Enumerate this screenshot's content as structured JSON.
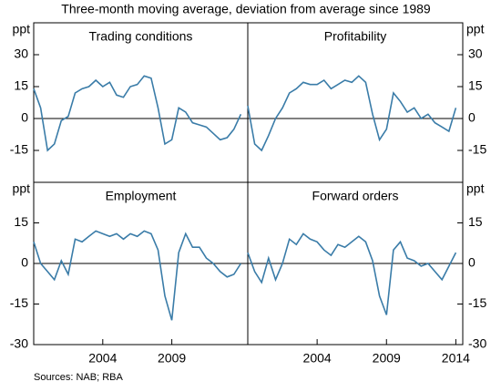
{
  "subtitle": "Three-month moving average, deviation from average since 1989",
  "sources": "Sources:  NAB; RBA",
  "chart_data": [
    {
      "type": "line",
      "title": "Trading conditions",
      "y_label": "ppt",
      "color": "#3a7ca8",
      "x": [
        1999,
        1999.5,
        2000,
        2000.5,
        2001,
        2001.5,
        2002,
        2002.5,
        2003,
        2003.5,
        2004,
        2004.5,
        2005,
        2005.5,
        2006,
        2006.5,
        2007,
        2007.5,
        2008,
        2008.5,
        2009,
        2009.5,
        2010,
        2010.5,
        2011,
        2011.5,
        2012,
        2012.5,
        2013,
        2013.5,
        2014
      ],
      "values": [
        14,
        5,
        -15,
        -12,
        -1,
        1,
        12,
        14,
        15,
        18,
        15,
        17,
        11,
        10,
        15,
        16,
        20,
        19,
        5,
        -12,
        -10,
        5,
        3,
        -2,
        -3,
        -4,
        -7,
        -10,
        -9,
        -5,
        2
      ],
      "xlim": [
        1999,
        2014.5
      ],
      "xticks": [],
      "ylim": [
        -30,
        45
      ],
      "yticks": [
        -15,
        0,
        15,
        30
      ]
    },
    {
      "type": "line",
      "title": "Profitability",
      "y_label": "ppt",
      "color": "#3a7ca8",
      "x": [
        1999,
        1999.5,
        2000,
        2000.5,
        2001,
        2001.5,
        2002,
        2002.5,
        2003,
        2003.5,
        2004,
        2004.5,
        2005,
        2005.5,
        2006,
        2006.5,
        2007,
        2007.5,
        2008,
        2008.5,
        2009,
        2009.5,
        2010,
        2010.5,
        2011,
        2011.5,
        2012,
        2012.5,
        2013,
        2013.5,
        2014
      ],
      "values": [
        6,
        -12,
        -15,
        -8,
        0,
        5,
        12,
        14,
        17,
        16,
        16,
        18,
        14,
        16,
        18,
        17,
        20,
        17,
        2,
        -10,
        -5,
        12,
        8,
        3,
        5,
        0,
        2,
        -2,
        -4,
        -6,
        5
      ],
      "xlim": [
        1999,
        2014.5
      ],
      "xticks": [],
      "ylim": [
        -30,
        45
      ],
      "yticks": [
        -15,
        0,
        15,
        30
      ]
    },
    {
      "type": "line",
      "title": "Employment",
      "y_label": "ppt",
      "color": "#3a7ca8",
      "x": [
        1999,
        1999.5,
        2000,
        2000.5,
        2001,
        2001.5,
        2002,
        2002.5,
        2003,
        2003.5,
        2004,
        2004.5,
        2005,
        2005.5,
        2006,
        2006.5,
        2007,
        2007.5,
        2008,
        2008.5,
        2009,
        2009.5,
        2010,
        2010.5,
        2011,
        2011.5,
        2012,
        2012.5,
        2013,
        2013.5,
        2014
      ],
      "values": [
        8,
        0,
        -3,
        -6,
        1,
        -4,
        9,
        8,
        10,
        12,
        11,
        10,
        11,
        9,
        11,
        10,
        12,
        11,
        5,
        -12,
        -21,
        4,
        11,
        6,
        6,
        2,
        0,
        -3,
        -5,
        -4,
        0
      ],
      "xlim": [
        1999,
        2014.5
      ],
      "xticks": [
        2004,
        2009
      ],
      "ylim": [
        -30,
        30
      ],
      "yticks": [
        -30,
        -15,
        0,
        15
      ]
    },
    {
      "type": "line",
      "title": "Forward orders",
      "y_label": "ppt",
      "color": "#3a7ca8",
      "x": [
        1999,
        1999.5,
        2000,
        2000.5,
        2001,
        2001.5,
        2002,
        2002.5,
        2003,
        2003.5,
        2004,
        2004.5,
        2005,
        2005.5,
        2006,
        2006.5,
        2007,
        2007.5,
        2008,
        2008.5,
        2009,
        2009.5,
        2010,
        2010.5,
        2011,
        2011.5,
        2012,
        2012.5,
        2013,
        2013.5,
        2014
      ],
      "values": [
        4,
        -3,
        -7,
        2,
        -6,
        0,
        9,
        7,
        11,
        9,
        8,
        5,
        3,
        7,
        6,
        8,
        10,
        8,
        1,
        -12,
        -19,
        5,
        8,
        2,
        1,
        -1,
        0,
        -3,
        -6,
        -1,
        4
      ],
      "xlim": [
        1999,
        2014.5
      ],
      "xticks": [
        2004,
        2009,
        2014
      ],
      "ylim": [
        -30,
        30
      ],
      "yticks": [
        -30,
        -15,
        0,
        15
      ]
    }
  ]
}
